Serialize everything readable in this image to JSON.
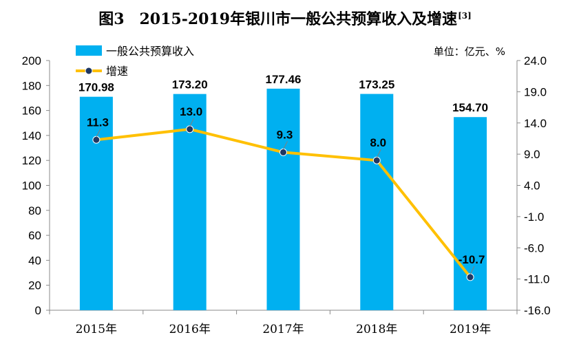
{
  "title": {
    "main": "图3　2015-2019年银川市一般公共预算收入及增速",
    "footnote_mark": "[3]"
  },
  "unit_note": "单位：亿元、%",
  "colors": {
    "bar": "#00B0F0",
    "line": "#FFC000",
    "marker_fill": "#1F3864",
    "axis": "#888888"
  },
  "chart_data": {
    "type": "bar",
    "categories": [
      "2015年",
      "2016年",
      "2017年",
      "2018年",
      "2019年"
    ],
    "series": [
      {
        "name": "一般公共预算收入",
        "type": "bar",
        "axis": "left",
        "values": [
          170.98,
          173.2,
          177.46,
          173.25,
          154.7
        ],
        "labels": [
          "170.98",
          "173.20",
          "177.46",
          "173.25",
          "154.70"
        ]
      },
      {
        "name": "增速",
        "type": "line",
        "axis": "right",
        "values": [
          11.3,
          13.0,
          9.3,
          8.0,
          -10.7
        ],
        "labels": [
          "11.3",
          "13.0",
          "9.3",
          "8.0",
          "-10.7"
        ]
      }
    ],
    "y_left": {
      "ylim": [
        0,
        200
      ],
      "ticks": [
        "0",
        "20",
        "40",
        "60",
        "80",
        "100",
        "120",
        "140",
        "160",
        "180",
        "200"
      ]
    },
    "y_right": {
      "ylim": [
        -16.0,
        24.0
      ],
      "ticks": [
        "-16.0",
        "-11.0",
        "-6.0",
        "-1.0",
        "4.0",
        "9.0",
        "14.0",
        "19.0",
        "24.0"
      ]
    },
    "grid": false,
    "legend": "top-left"
  }
}
